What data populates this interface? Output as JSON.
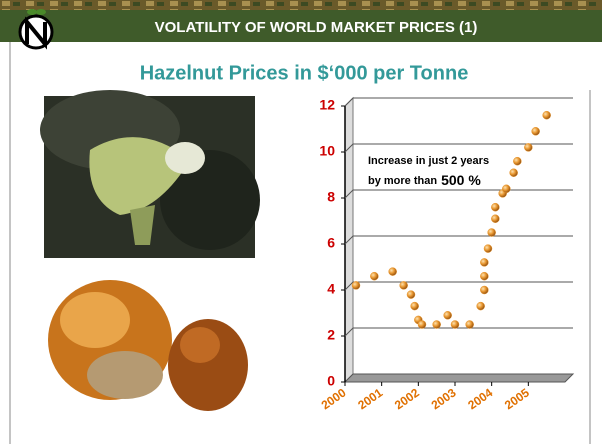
{
  "header": "VOLATILITY OF WORLD MARKET PRICES (1)",
  "chart_data": {
    "type": "scatter",
    "title": "Hazelnut Prices in $‘000 per Tonne",
    "annotation": {
      "line1": "Increase in just 2 years",
      "line2": "by more than",
      "emphasis": "500 %"
    },
    "x": [
      2000.3,
      2000.8,
      2001.3,
      2001.6,
      2001.8,
      2001.9,
      2002.0,
      2002.1,
      2002.5,
      2002.8,
      2003.0,
      2003.4,
      2003.7,
      2003.8,
      2003.8,
      2003.8,
      2003.9,
      2004.0,
      2004.1,
      2004.1,
      2004.3,
      2004.4,
      2004.6,
      2004.7,
      2005.0,
      2005.2,
      2005.5
    ],
    "values": [
      4.2,
      4.6,
      4.8,
      4.2,
      3.8,
      3.3,
      2.7,
      2.5,
      2.5,
      2.9,
      2.5,
      2.5,
      3.3,
      4.0,
      4.6,
      5.2,
      5.8,
      6.5,
      7.1,
      7.6,
      8.2,
      8.4,
      9.1,
      9.6,
      10.2,
      10.9,
      11.6
    ],
    "color": "#e8962e",
    "xlim": [
      2000,
      2006
    ],
    "xticks": [
      2000,
      2001,
      2002,
      2003,
      2004,
      2005
    ],
    "ylim": [
      0,
      12
    ],
    "yticks": [
      0,
      2,
      4,
      6,
      8,
      10,
      12
    ],
    "grid": true
  }
}
